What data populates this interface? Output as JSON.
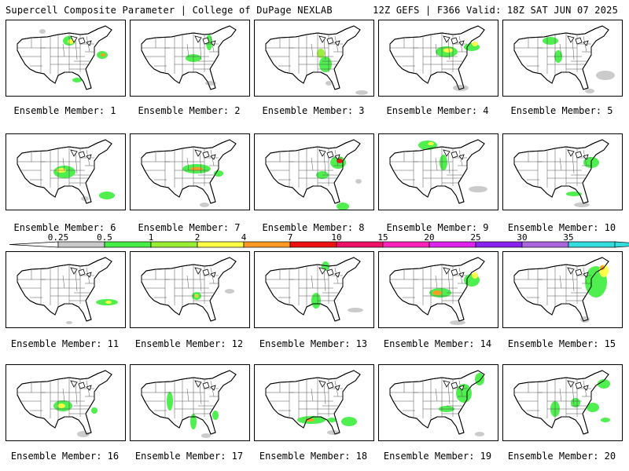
{
  "header": {
    "left": "Supercell Composite Parameter | College of DuPage NEXLAB",
    "right": "12Z GEFS | F366 Valid: 18Z SAT JUN 07 2025"
  },
  "colorbar": {
    "ticks": [
      "0.25",
      "0.5",
      "1",
      "2",
      "4",
      "7",
      "10",
      "15",
      "20",
      "25",
      "30",
      "35"
    ],
    "colors": [
      "#c8c8c8",
      "#44ee44",
      "#99ee33",
      "#ffff44",
      "#ff9922",
      "#ee1111",
      "#ee1166",
      "#ff22bb",
      "#dd22ee",
      "#8822ee",
      "#aa66dd",
      "#33dddd"
    ]
  },
  "panels": [
    {
      "label": "Ensemble Member: 1"
    },
    {
      "label": "Ensemble Member: 2"
    },
    {
      "label": "Ensemble Member: 3"
    },
    {
      "label": "Ensemble Member: 4"
    },
    {
      "label": "Ensemble Member: 5"
    },
    {
      "label": "Ensemble Member: 6"
    },
    {
      "label": "Ensemble Member: 7"
    },
    {
      "label": "Ensemble Member: 8"
    },
    {
      "label": "Ensemble Member: 9"
    },
    {
      "label": "Ensemble Member: 10"
    },
    {
      "label": "Ensemble Member: 11"
    },
    {
      "label": "Ensemble Member: 12"
    },
    {
      "label": "Ensemble Member: 13"
    },
    {
      "label": "Ensemble Member: 14"
    },
    {
      "label": "Ensemble Member: 15"
    },
    {
      "label": "Ensemble Member: 16"
    },
    {
      "label": "Ensemble Member: 17"
    },
    {
      "label": "Ensemble Member: 18"
    },
    {
      "label": "Ensemble Member: 19"
    },
    {
      "label": "Ensemble Member: 20"
    }
  ]
}
